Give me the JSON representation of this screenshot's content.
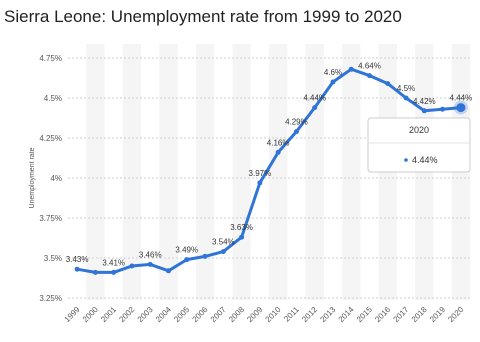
{
  "chart_data": {
    "type": "line",
    "title": "Sierra Leone: Unemployment rate from 1999 to 2020",
    "y_label": "Unemployment rate",
    "categories": [
      "1999",
      "2000",
      "2001",
      "2002",
      "2003",
      "2004",
      "2005",
      "2006",
      "2007",
      "2008",
      "2009",
      "2010",
      "2011",
      "2012",
      "2013",
      "2014",
      "2015",
      "2016",
      "2017",
      "2018",
      "2019",
      "2020"
    ],
    "series": [
      {
        "name": "Unemployment rate",
        "color": "#2f74d6",
        "values": [
          3.43,
          3.41,
          3.41,
          3.45,
          3.46,
          3.42,
          3.49,
          3.51,
          3.54,
          3.63,
          3.97,
          4.16,
          4.29,
          4.44,
          4.6,
          4.68,
          4.64,
          4.59,
          4.5,
          4.42,
          4.43,
          4.44
        ],
        "value_labels": [
          "3.43%",
          null,
          "3.41%",
          null,
          "3.46%",
          null,
          "3.49%",
          null,
          "3.54%",
          "3.63%",
          "3.97%",
          "4.16%",
          "4.29%",
          "4.44%",
          "4.6%",
          null,
          "4.64%",
          null,
          "4.5%",
          "4.42%",
          null,
          "4.44%"
        ]
      }
    ],
    "ylim": [
      3.25,
      4.75
    ],
    "yticks": [
      {
        "value": 3.25,
        "label": "3.25%"
      },
      {
        "value": 3.5,
        "label": "3.5%"
      },
      {
        "value": 3.75,
        "label": "3.75%"
      },
      {
        "value": 4,
        "label": "4%"
      },
      {
        "value": 4.25,
        "label": "4.25%"
      },
      {
        "value": 4.5,
        "label": "4.5%"
      },
      {
        "value": 4.75,
        "label": "4.75%"
      }
    ],
    "grid": true
  }
}
